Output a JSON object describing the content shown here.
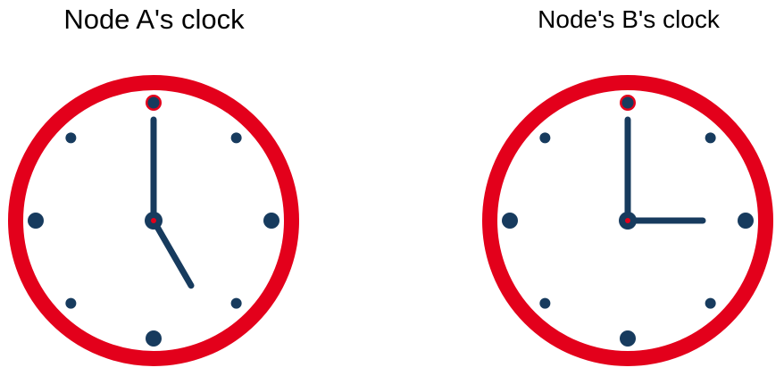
{
  "colors": {
    "rim": "#e3001b",
    "face": "#ffffff",
    "ink": "#173b5e",
    "pin": "#e3001b"
  },
  "clocks": [
    {
      "title": "Node A's clock",
      "hour": 5,
      "minute": 0
    },
    {
      "title": "Node's B's clock",
      "hour": 3,
      "minute": 0
    }
  ],
  "marker_icon": "hour-dot-icon"
}
